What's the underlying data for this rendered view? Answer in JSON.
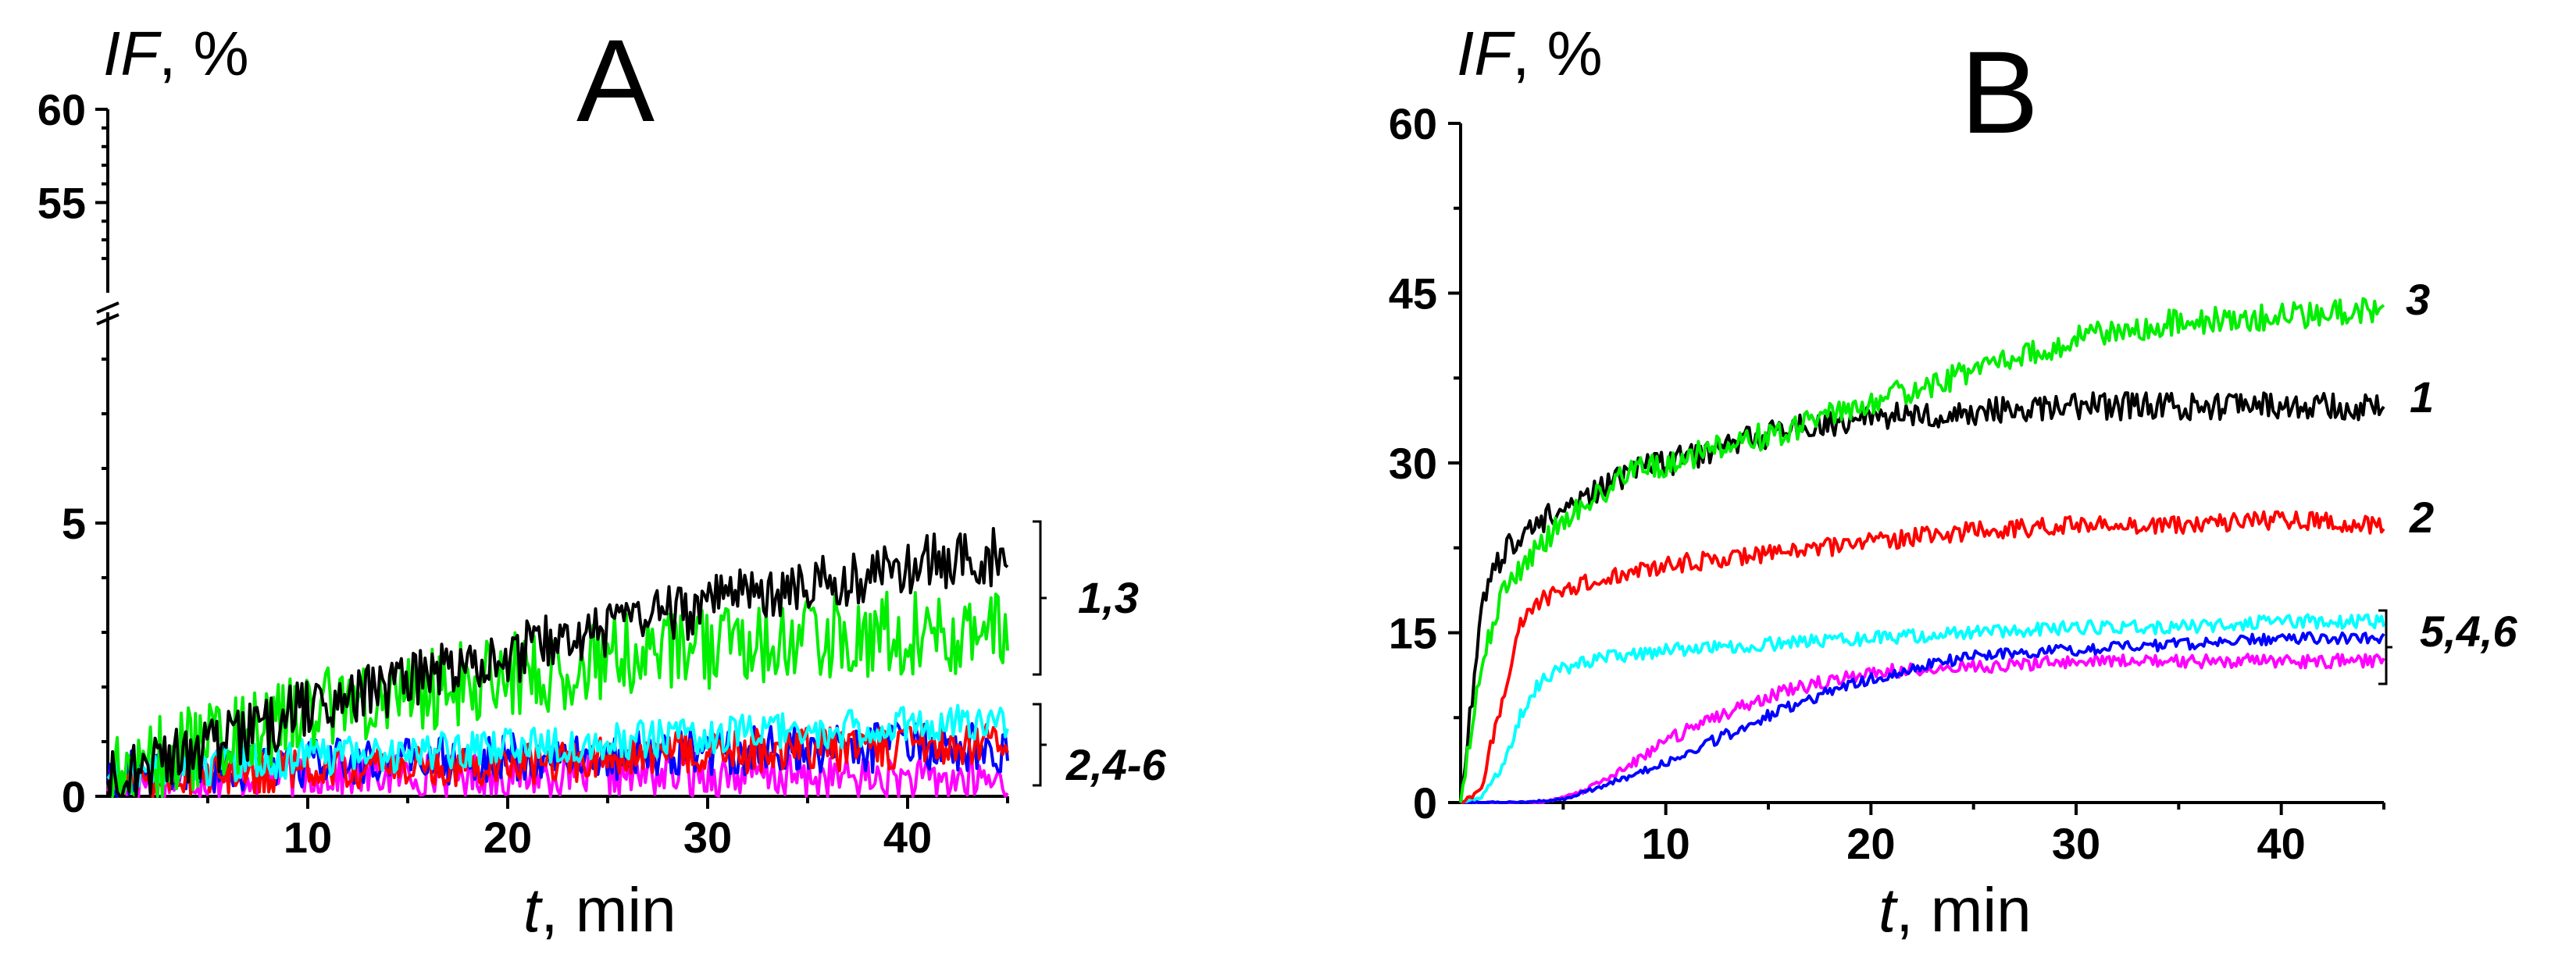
{
  "chart_data": [
    {
      "panel": "A",
      "type": "line",
      "ylabel_italic": "IF",
      "ylabel_rest": ", %",
      "xlabel_italic": "t",
      "xlabel_rest": ", min",
      "xlim": [
        0,
        45
      ],
      "x_ticks": [
        10,
        20,
        30,
        40
      ],
      "ylim_lower": [
        0,
        8
      ],
      "ylim_upper": [
        51,
        60
      ],
      "y_ticks_lower": [
        0,
        5
      ],
      "y_ticks_upper": [
        55,
        60
      ],
      "axis_break": true,
      "series": [
        {
          "name": "1",
          "color": "#000000",
          "noise": 0.55,
          "x": [
            0,
            5,
            10,
            15,
            20,
            25,
            30,
            35,
            40,
            45
          ],
          "y": [
            0.3,
            0.9,
            1.6,
            2.1,
            2.6,
            3.0,
            3.5,
            3.9,
            4.2,
            4.4
          ]
        },
        {
          "name": "3",
          "color": "#00ee00",
          "noise": 0.8,
          "x": [
            0,
            5,
            10,
            15,
            20,
            25,
            30,
            35,
            40,
            45
          ],
          "y": [
            0.3,
            1.0,
            1.5,
            1.9,
            2.2,
            2.5,
            2.7,
            2.9,
            3.0,
            3.0
          ]
        },
        {
          "name": "2",
          "color": "#ff0000",
          "noise": 0.4,
          "x": [
            0,
            10,
            20,
            30,
            40,
            45
          ],
          "y": [
            0.3,
            0.5,
            0.6,
            0.8,
            0.9,
            1.0
          ]
        },
        {
          "name": "4",
          "color": "#0000ff",
          "noise": 0.45,
          "x": [
            0,
            10,
            20,
            30,
            40,
            45
          ],
          "y": [
            0.4,
            0.6,
            0.7,
            0.8,
            0.9,
            0.9
          ]
        },
        {
          "name": "5",
          "color": "#00ffff",
          "noise": 0.35,
          "x": [
            0,
            10,
            20,
            30,
            40,
            45
          ],
          "y": [
            0.4,
            0.7,
            0.9,
            1.1,
            1.3,
            1.4
          ]
        },
        {
          "name": "6",
          "color": "#ff00ff",
          "noise": 0.4,
          "x": [
            0,
            10,
            20,
            30,
            40,
            45
          ],
          "y": [
            0.3,
            0.4,
            0.4,
            0.4,
            0.3,
            0.3
          ]
        }
      ],
      "group_labels": [
        "1,3",
        "2,4-6"
      ]
    },
    {
      "panel": "B",
      "type": "line",
      "ylabel_italic": "IF",
      "ylabel_rest": ", %",
      "xlabel_italic": "t",
      "xlabel_rest": ", min",
      "xlim": [
        0,
        45
      ],
      "ylim": [
        0,
        60
      ],
      "x_ticks": [
        10,
        20,
        30,
        40
      ],
      "y_ticks": [
        0,
        15,
        30,
        45,
        60
      ],
      "series": [
        {
          "name": "1",
          "color": "#000000",
          "noise": 1.2,
          "x": [
            0,
            0.5,
            1,
            2,
            3,
            5,
            8,
            12,
            16,
            20,
            25,
            30,
            35,
            40,
            45
          ],
          "y": [
            0,
            8,
            17,
            22,
            24,
            26,
            29,
            31,
            33,
            34,
            34.5,
            35,
            35,
            35,
            35
          ]
        },
        {
          "name": "3",
          "color": "#00ee00",
          "noise": 1.2,
          "x": [
            0,
            0.5,
            1,
            2,
            3,
            5,
            8,
            12,
            16,
            20,
            25,
            30,
            35,
            40,
            45
          ],
          "y": [
            0,
            6,
            12,
            18,
            21,
            25,
            29,
            31,
            33,
            35.5,
            38,
            41,
            42.5,
            43,
            43.5
          ]
        },
        {
          "name": "2",
          "color": "#ff0000",
          "noise": 0.8,
          "x": [
            0,
            1,
            2,
            3,
            4,
            6,
            10,
            15,
            20,
            25,
            30,
            35,
            40,
            45
          ],
          "y": [
            0,
            1,
            9,
            16,
            18,
            19.5,
            21,
            22,
            23,
            24,
            24.5,
            24.5,
            25,
            24.5
          ]
        },
        {
          "name": "5",
          "color": "#00ffff",
          "noise": 0.6,
          "x": [
            0,
            1,
            2,
            3,
            4,
            6,
            10,
            15,
            20,
            25,
            30,
            35,
            40,
            45
          ],
          "y": [
            0,
            0.5,
            3,
            8,
            11,
            12.5,
            13.5,
            14,
            14.5,
            15,
            15.5,
            15.5,
            16,
            16
          ]
        },
        {
          "name": "4",
          "color": "#0000ff",
          "noise": 0.5,
          "x": [
            0,
            3,
            5,
            7,
            10,
            13,
            16,
            20,
            25,
            30,
            35,
            40,
            45
          ],
          "y": [
            0,
            0,
            0.3,
            1.5,
            3.5,
            6,
            8.5,
            11,
            13,
            13.5,
            14,
            14.5,
            14.5
          ]
        },
        {
          "name": "6",
          "color": "#ff00ff",
          "noise": 0.6,
          "x": [
            0,
            4,
            6,
            8,
            10,
            13,
            16,
            20,
            25,
            30,
            35,
            40,
            45
          ],
          "y": [
            0,
            0,
            1,
            3,
            5.5,
            8,
            10,
            11.5,
            12,
            12.5,
            12.5,
            12.5,
            12.5
          ]
        }
      ],
      "curve_labels": [
        "3",
        "1",
        "2"
      ],
      "group_labels": [
        "5,4,6"
      ]
    }
  ],
  "panel_letters": [
    "A",
    "B"
  ]
}
